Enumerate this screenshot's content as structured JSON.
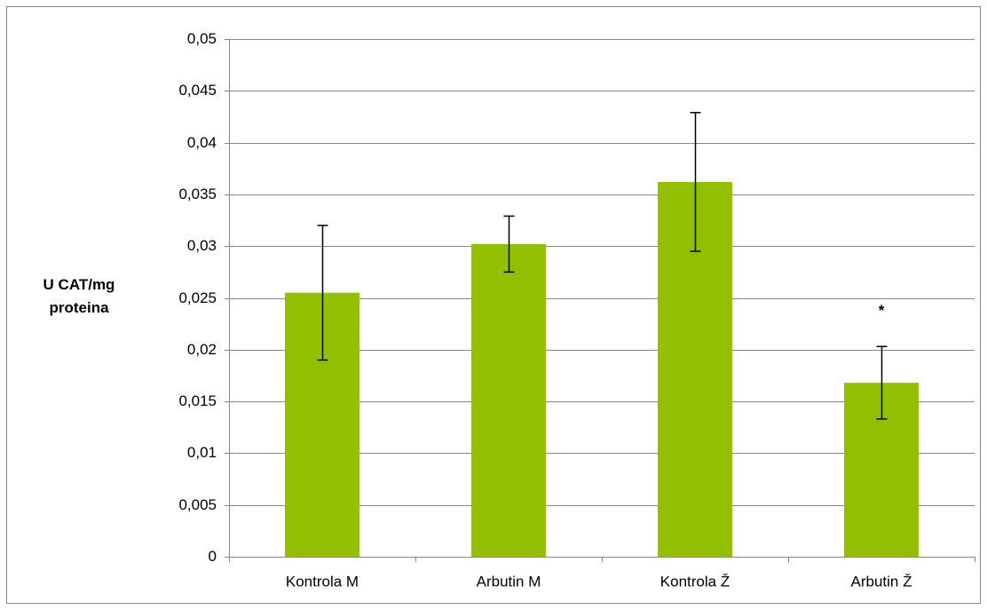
{
  "chart_data": {
    "type": "bar",
    "ylabel": "U CAT/mg proteina",
    "categories": [
      "Kontrola M",
      "Arbutin M",
      "Kontrola Ž",
      "Arbutin Ž"
    ],
    "values": [
      0.0255,
      0.0302,
      0.0362,
      0.0168
    ],
    "errors": [
      0.0065,
      0.0027,
      0.0067,
      0.0035
    ],
    "color": "#92c000",
    "ylim": [
      0,
      0.05
    ],
    "yticks": [
      0,
      {
        "value": 0.005,
        "label": "0,005"
      },
      {
        "value": 0.01,
        "label": "0,01"
      },
      {
        "value": 0.015,
        "label": "0,015"
      },
      {
        "value": 0.02,
        "label": "0,02"
      },
      {
        "value": 0.025,
        "label": "0,025"
      },
      {
        "value": 0.03,
        "label": "0,03"
      },
      {
        "value": 0.035,
        "label": "0,035"
      },
      {
        "value": 0.04,
        "label": "0,04"
      },
      {
        "value": 0.045,
        "label": "0,045"
      },
      {
        "value": 0.05,
        "label": "0,05"
      }
    ],
    "grid": true,
    "annotations": [
      {
        "text": "*",
        "x": "Arbutin Ž"
      }
    ]
  }
}
